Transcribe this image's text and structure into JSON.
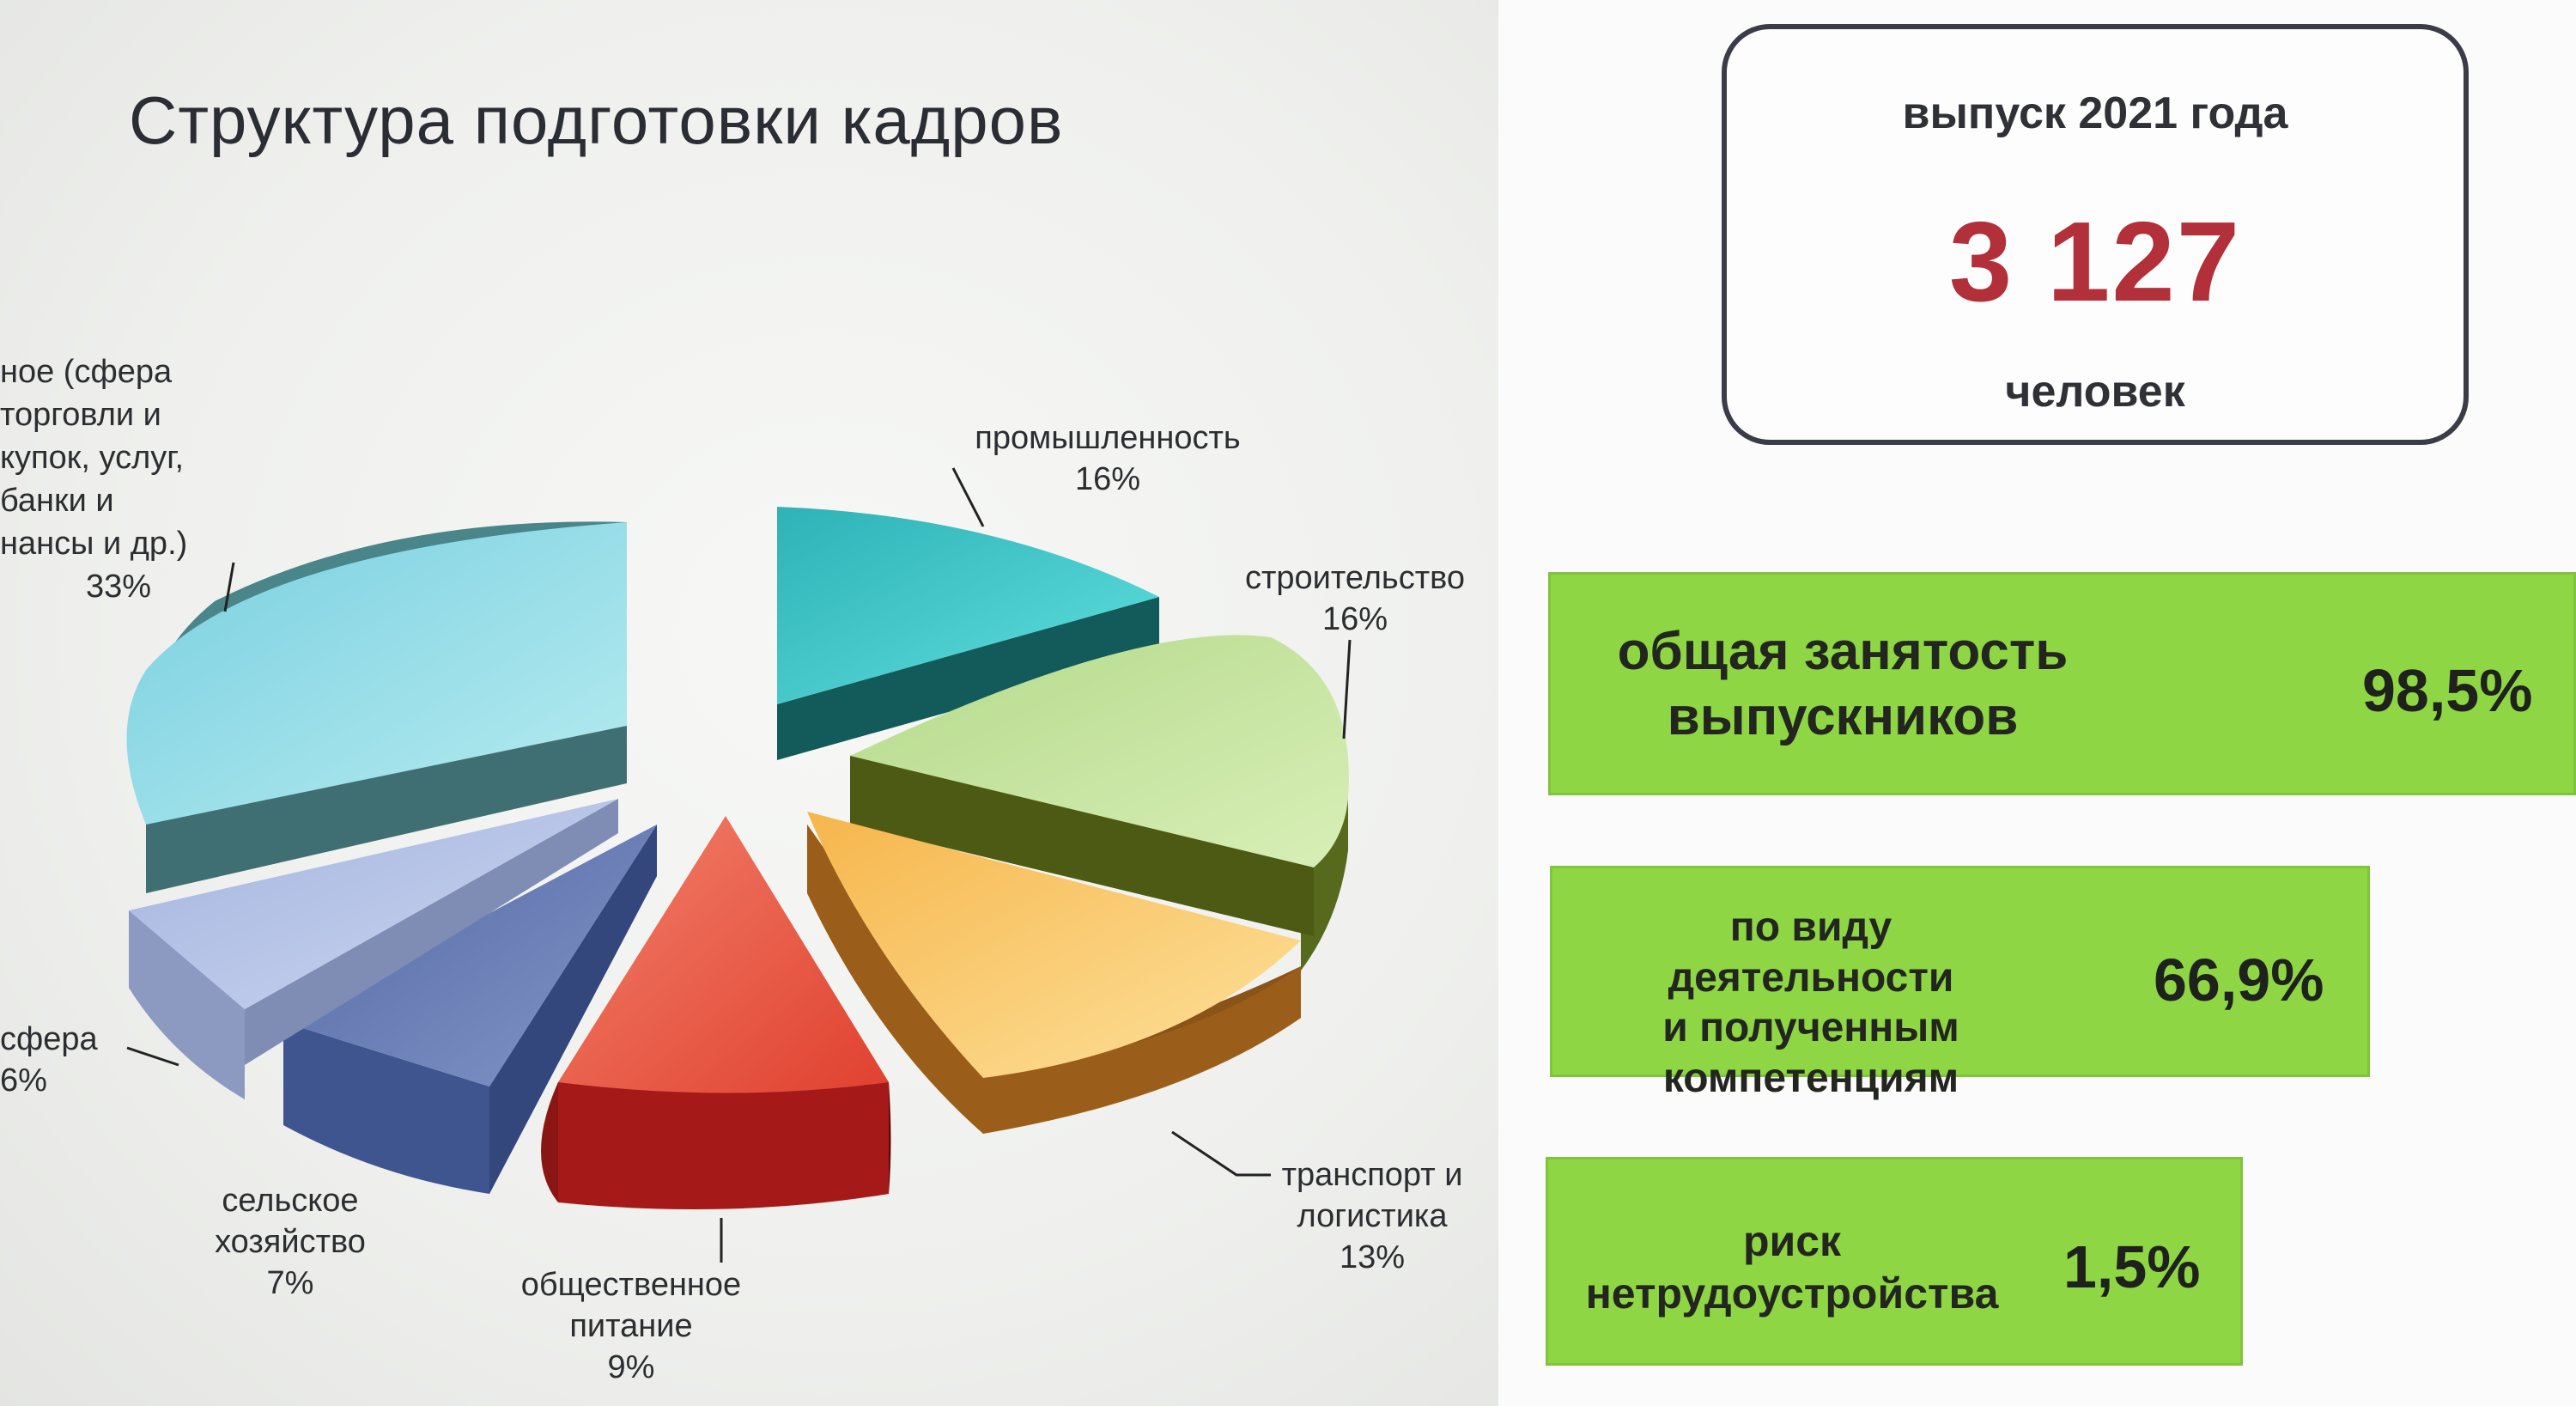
{
  "title": "Структура подготовки кадров",
  "chart_data": {
    "type": "pie",
    "slices": [
      {
        "label_lines": [
          "ное (сфера",
          "торговли и",
          "купок, услуг,",
          "банки и",
          "нансы  и др.)"
        ],
        "value": 33,
        "value_label": "33%",
        "color": "#8fd9e3"
      },
      {
        "label_lines": [
          "промышленность"
        ],
        "value": 16,
        "value_label": "16%",
        "color": "#40c9c9"
      },
      {
        "label_lines": [
          "строительство"
        ],
        "value": 16,
        "value_label": "16%",
        "color": "#c4e39a"
      },
      {
        "label_lines": [
          "транспорт и",
          "логистика"
        ],
        "value": 13,
        "value_label": "13%",
        "color": "#fac767"
      },
      {
        "label_lines": [
          "общественное",
          "питание"
        ],
        "value": 9,
        "value_label": "9%",
        "color": "#ee5a48"
      },
      {
        "label_lines": [
          "сельское",
          "хозяйство"
        ],
        "value": 7,
        "value_label": "7%",
        "color": "#6a80b7"
      },
      {
        "label_lines": [
          "сфера"
        ],
        "value": 6,
        "value_label": "6%",
        "color": "#b5c3e6"
      }
    ]
  },
  "stat": {
    "heading": "выпуск 2021 года",
    "value": "3 127",
    "unit": "человек"
  },
  "cards": [
    {
      "lines": [
        "общая занятость",
        "выпускников"
      ],
      "value": "98,5%"
    },
    {
      "lines": [
        "по виду деятельности",
        "и полученным",
        "компетенциям"
      ],
      "value": "66,9%"
    },
    {
      "lines": [
        "риск",
        "нетрудоустройства"
      ],
      "value": "1,5%"
    }
  ],
  "colors": {
    "accent_red": "#b2303a",
    "card_green": "#8fd644"
  }
}
